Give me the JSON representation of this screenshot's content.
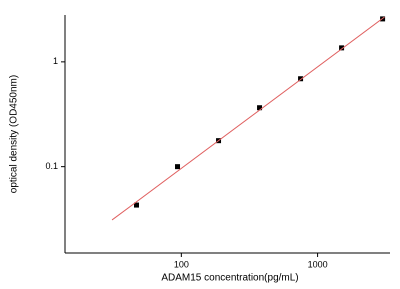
{
  "chart_data": {
    "type": "scatter",
    "x_label": "ADAM15 concentration(pg/mL)",
    "y_label": "optical density (OD450nm)",
    "x": [
      46.875,
      93.75,
      187.5,
      375,
      750,
      1500,
      3000
    ],
    "series": [
      {
        "color": "#000000",
        "values": [
          0.043,
          0.1,
          0.177,
          0.365,
          0.69,
          1.36,
          2.57
        ]
      },
      {
        "type": "line",
        "color": "#e06060",
        "x": [
          31,
          3100
        ],
        "values": [
          0.031,
          2.68
        ]
      }
    ],
    "xlim": [
      14,
      3400
    ],
    "ylim": [
      0.015,
      2.8
    ],
    "xticks": [
      100,
      1000
    ],
    "yticks": [
      0.1,
      1
    ],
    "xscale": "log",
    "yscale": "log"
  }
}
